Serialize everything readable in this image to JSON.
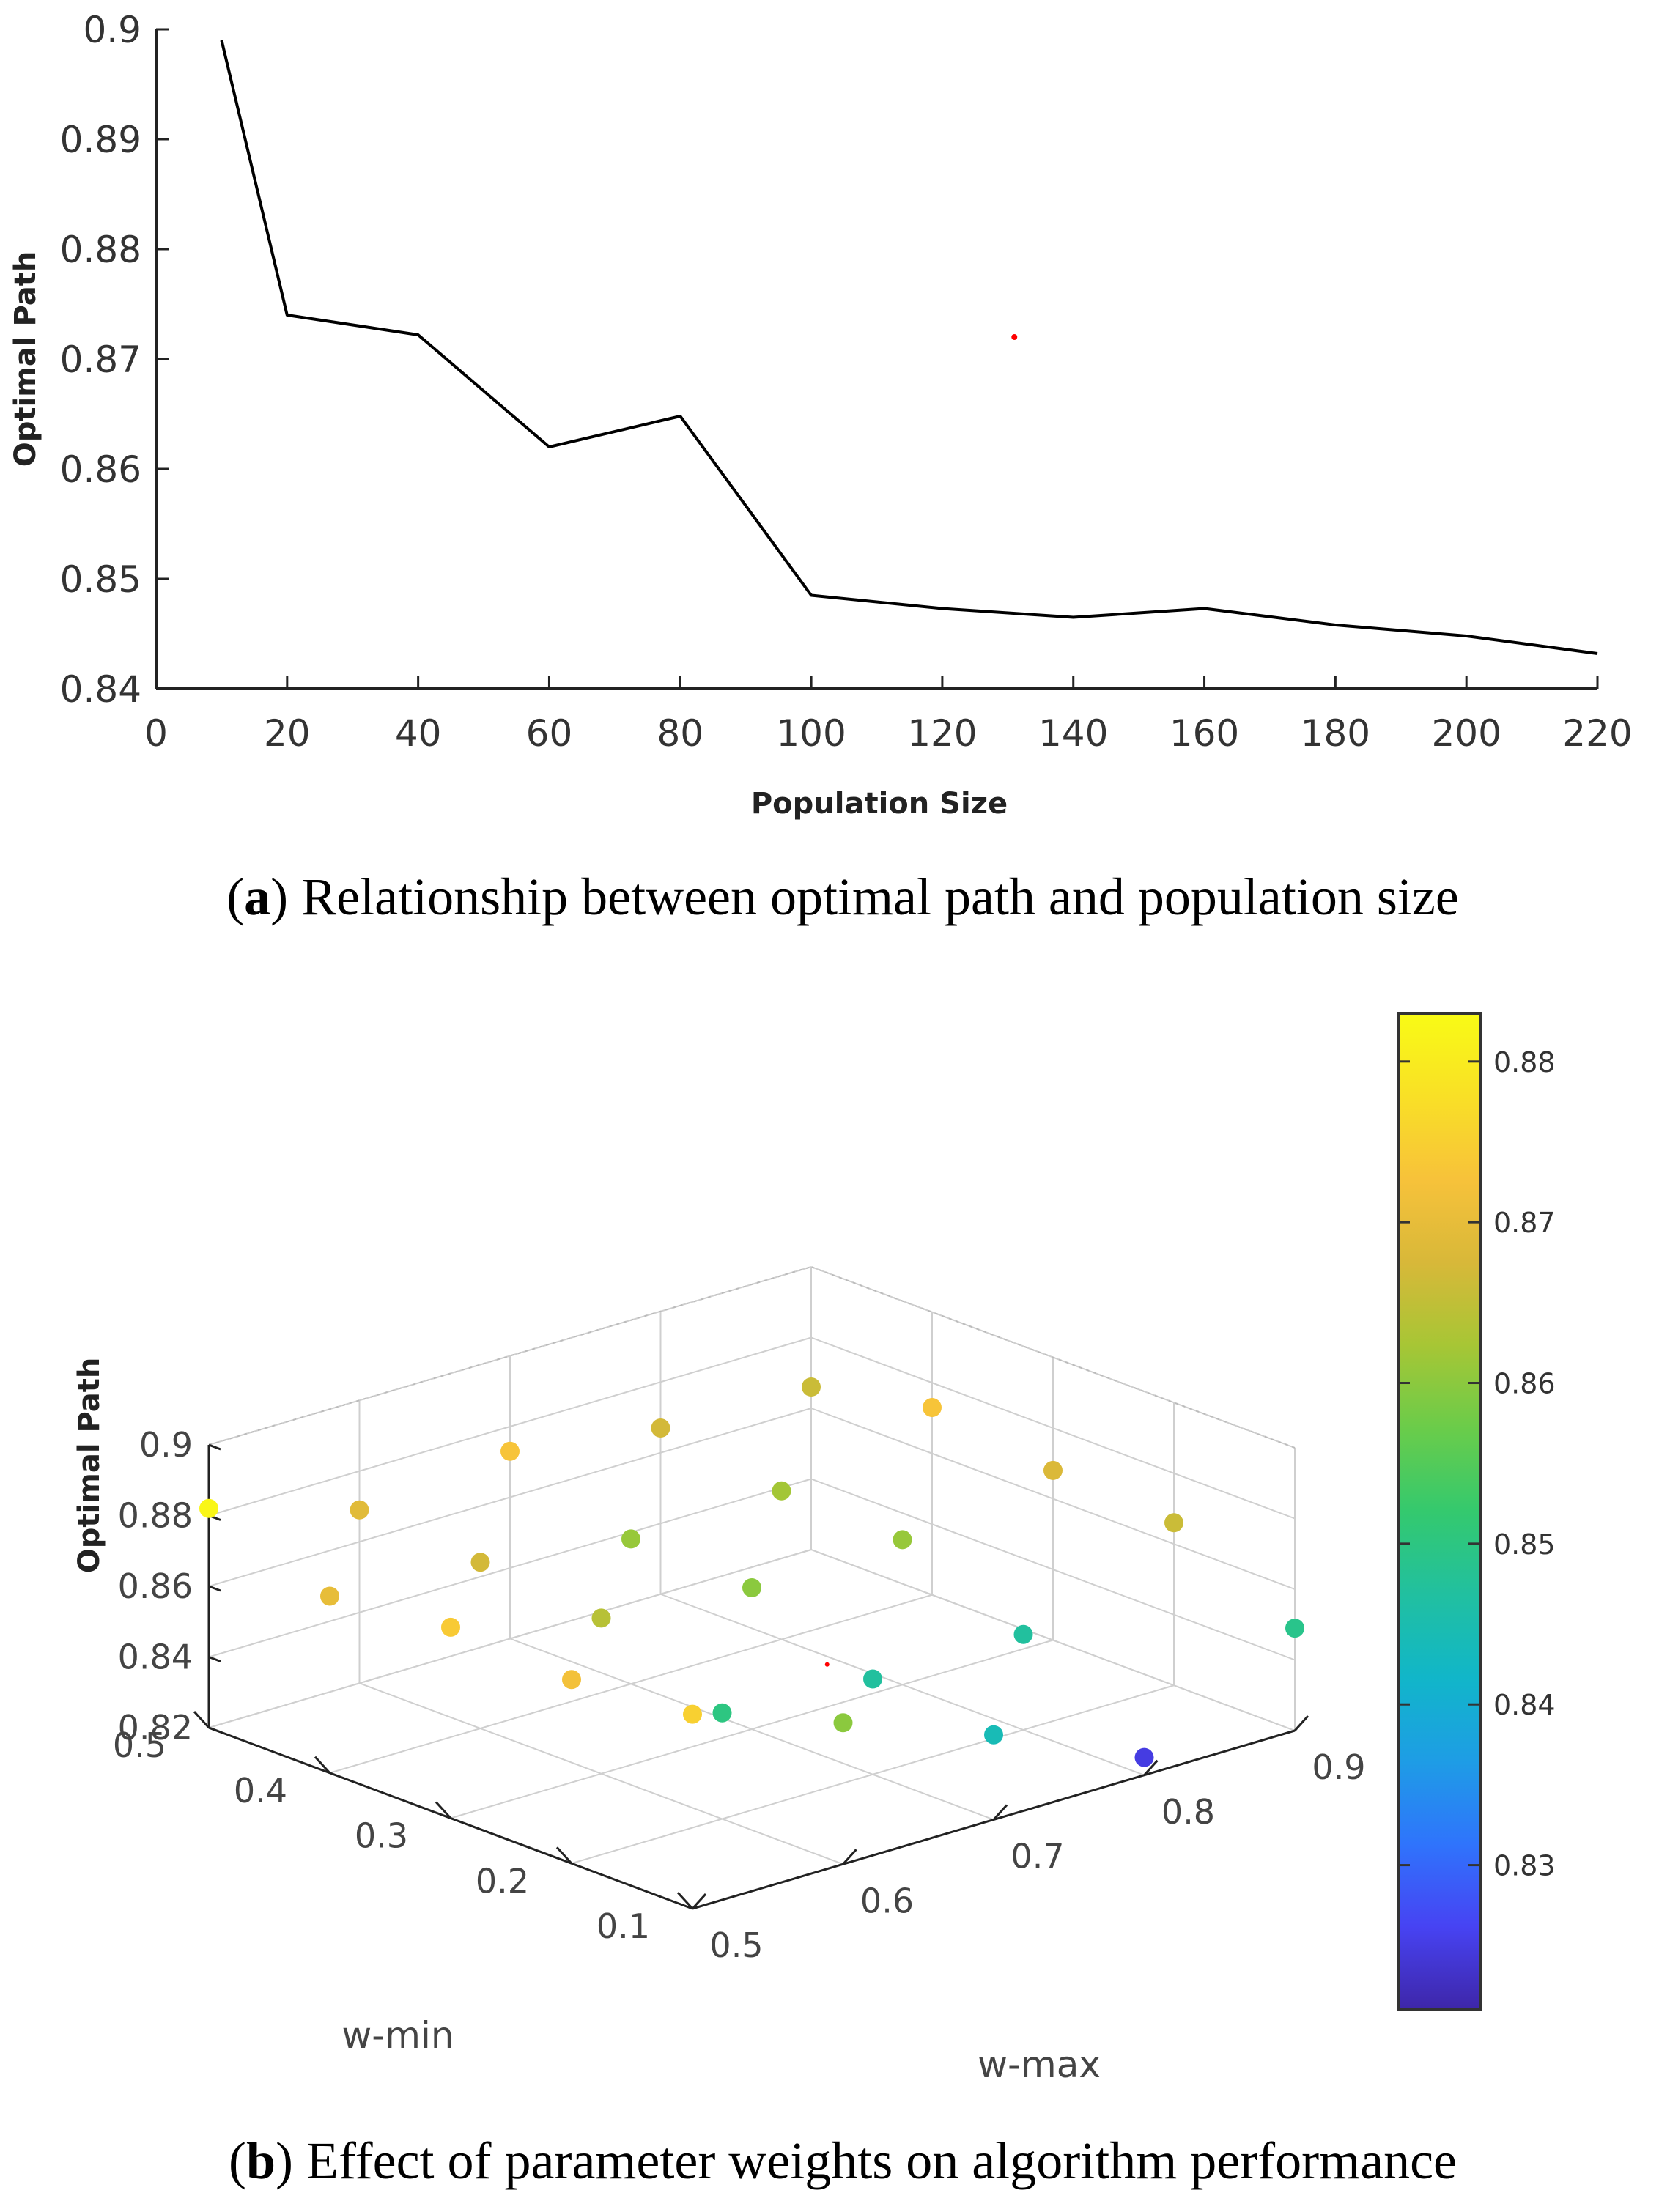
{
  "chart_data": [
    {
      "type": "line",
      "panel": "a",
      "caption_letter": "a",
      "caption_text": ") Relationship between optimal path and population size",
      "xlabel": "Population Size",
      "ylabel": "Optimal  Path",
      "xlim": [
        0,
        220
      ],
      "ylim": [
        0.84,
        0.9
      ],
      "xticks": [
        "0",
        "20",
        "40",
        "60",
        "80",
        "100",
        "120",
        "140",
        "160",
        "180",
        "200",
        "220"
      ],
      "yticks": [
        "0.84",
        "0.85",
        "0.86",
        "0.87",
        "0.88",
        "0.89",
        "0.9"
      ],
      "line_color": "#000000",
      "series": [
        {
          "name": "Optimal Path",
          "x": [
            10,
            20,
            40,
            60,
            80,
            100,
            120,
            140,
            160,
            180,
            200,
            220
          ],
          "y": [
            0.899,
            0.874,
            0.8722,
            0.862,
            0.8648,
            0.8485,
            0.8473,
            0.8465,
            0.8473,
            0.8458,
            0.8448,
            0.8432
          ]
        }
      ],
      "marker": {
        "x": 131,
        "y": 0.872,
        "color": "#ff0000"
      }
    },
    {
      "type": "scatter3d",
      "panel": "b",
      "caption_letter": "b",
      "caption_text": ") Effect of parameter weights on algorithm performance",
      "xlabel": "w-max",
      "ylabel": "w-min",
      "zlabel": "Optimal  Path",
      "xlim": [
        0.5,
        0.9
      ],
      "ylim": [
        0.1,
        0.5
      ],
      "zlim": [
        0.82,
        0.9
      ],
      "xticks": [
        "0.5",
        "0.6",
        "0.7",
        "0.8",
        "0.9"
      ],
      "yticks": [
        "0.1",
        "0.2",
        "0.3",
        "0.4",
        "0.5"
      ],
      "zticks": [
        "0.82",
        "0.84",
        "0.86",
        "0.88",
        "0.9"
      ],
      "colorbar": {
        "range": [
          0.821,
          0.883
        ],
        "ticks": [
          "0.83",
          "0.84",
          "0.85",
          "0.86",
          "0.87",
          "0.88"
        ],
        "colormap": [
          "#3e26a8",
          "#4743f3",
          "#2f74fc",
          "#1e9de5",
          "#11b6c9",
          "#21c0a0",
          "#34c96e",
          "#6acc4a",
          "#a7c635",
          "#d8b839",
          "#f7c23a",
          "#f9e026",
          "#f9fb15"
        ]
      },
      "points": [
        {
          "x": 0.5,
          "y": 0.5,
          "z": 0.882
        },
        {
          "x": 0.5,
          "y": 0.4,
          "z": 0.87
        },
        {
          "x": 0.5,
          "y": 0.3,
          "z": 0.874
        },
        {
          "x": 0.5,
          "y": 0.2,
          "z": 0.872
        },
        {
          "x": 0.5,
          "y": 0.1,
          "z": 0.875
        },
        {
          "x": 0.6,
          "y": 0.5,
          "z": 0.869
        },
        {
          "x": 0.6,
          "y": 0.4,
          "z": 0.867
        },
        {
          "x": 0.6,
          "y": 0.3,
          "z": 0.864
        },
        {
          "x": 0.6,
          "y": 0.2,
          "z": 0.85
        },
        {
          "x": 0.6,
          "y": 0.1,
          "z": 0.86
        },
        {
          "x": 0.7,
          "y": 0.5,
          "z": 0.873
        },
        {
          "x": 0.7,
          "y": 0.4,
          "z": 0.861
        },
        {
          "x": 0.7,
          "y": 0.3,
          "z": 0.86
        },
        {
          "x": 0.7,
          "y": 0.2,
          "z": 0.847
        },
        {
          "x": 0.7,
          "y": 0.1,
          "z": 0.844
        },
        {
          "x": 0.8,
          "y": 0.5,
          "z": 0.867
        },
        {
          "x": 0.8,
          "y": 0.4,
          "z": 0.862
        },
        {
          "x": 0.8,
          "y": 0.3,
          "z": 0.861
        },
        {
          "x": 0.8,
          "y": 0.2,
          "z": 0.847
        },
        {
          "x": 0.8,
          "y": 0.1,
          "z": 0.825
        },
        {
          "x": 0.9,
          "y": 0.5,
          "z": 0.866
        },
        {
          "x": 0.9,
          "y": 0.4,
          "z": 0.873
        },
        {
          "x": 0.9,
          "y": 0.3,
          "z": 0.868
        },
        {
          "x": 0.9,
          "y": 0.2,
          "z": 0.866
        },
        {
          "x": 0.9,
          "y": 0.1,
          "z": 0.849
        }
      ],
      "marker": {
        "x": 0.75,
        "y": 0.3,
        "z": 0.832,
        "color": "#ff0000"
      }
    }
  ]
}
